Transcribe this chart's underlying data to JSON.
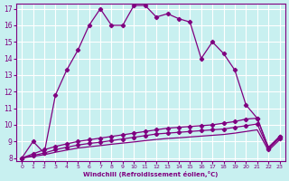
{
  "xlabel": "Windchill (Refroidissement éolien,°C)",
  "background_color": "#c8f0f0",
  "grid_color": "#ffffff",
  "line_color": "#800080",
  "x_values": [
    0,
    1,
    2,
    3,
    4,
    5,
    6,
    7,
    8,
    9,
    10,
    11,
    12,
    13,
    14,
    15,
    16,
    17,
    18,
    19,
    20,
    21,
    22,
    23
  ],
  "temp_line": [
    8.0,
    9.0,
    8.3,
    11.8,
    13.3,
    14.5,
    16.0,
    17.0,
    16.0,
    16.0,
    17.2,
    17.2,
    16.5,
    16.7,
    16.4,
    16.2,
    14.0,
    15.0,
    14.3,
    13.3,
    11.2,
    10.4,
    8.6,
    9.3
  ],
  "wind_line1": [
    8.0,
    8.25,
    8.5,
    8.7,
    8.85,
    9.0,
    9.1,
    9.2,
    9.3,
    9.4,
    9.5,
    9.6,
    9.7,
    9.8,
    9.85,
    9.9,
    9.95,
    10.0,
    10.1,
    10.2,
    10.35,
    10.4,
    8.65,
    9.3
  ],
  "wind_line2": [
    8.0,
    8.15,
    8.3,
    8.5,
    8.65,
    8.78,
    8.88,
    8.95,
    9.05,
    9.15,
    9.25,
    9.35,
    9.45,
    9.5,
    9.55,
    9.6,
    9.65,
    9.7,
    9.75,
    9.85,
    9.95,
    10.05,
    8.55,
    9.2
  ],
  "wind_line3": [
    8.0,
    8.1,
    8.2,
    8.35,
    8.48,
    8.6,
    8.68,
    8.75,
    8.83,
    8.9,
    8.97,
    9.05,
    9.12,
    9.18,
    9.22,
    9.27,
    9.32,
    9.37,
    9.42,
    9.5,
    9.6,
    9.7,
    8.45,
    9.1
  ],
  "ylim": [
    8,
    17
  ],
  "xlim": [
    0,
    23
  ],
  "yticks": [
    8,
    9,
    10,
    11,
    12,
    13,
    14,
    15,
    16,
    17
  ],
  "xticks": [
    0,
    1,
    2,
    3,
    4,
    5,
    6,
    7,
    8,
    9,
    10,
    11,
    12,
    13,
    14,
    15,
    16,
    17,
    18,
    19,
    20,
    21,
    22,
    23
  ]
}
